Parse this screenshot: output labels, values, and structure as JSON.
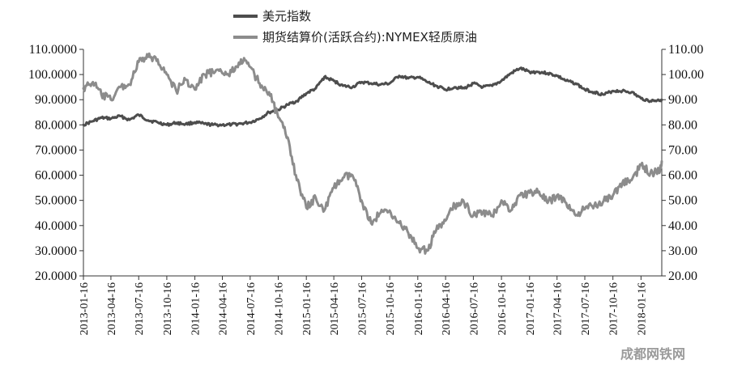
{
  "chart_data": {
    "type": "line",
    "title": "",
    "legend": {
      "placement": "top"
    },
    "grid": false,
    "left_axis": {
      "ylim": [
        20,
        110
      ],
      "ticks": [
        "20.0000",
        "30.0000",
        "40.0000",
        "50.0000",
        "60.0000",
        "70.0000",
        "80.0000",
        "90.0000",
        "100.0000",
        "110.0000"
      ]
    },
    "right_axis": {
      "ylim": [
        20,
        110
      ],
      "ticks": [
        "20.00",
        "30.00",
        "40.00",
        "50.00",
        "60.00",
        "70.00",
        "80.00",
        "90.00",
        "100.00",
        "110.00"
      ]
    },
    "x_ticks": [
      "2013-01-16",
      "2013-04-16",
      "2013-07-16",
      "2013-10-16",
      "2014-01-16",
      "2014-04-16",
      "2014-07-16",
      "2014-10-16",
      "2015-01-16",
      "2015-04-16",
      "2015-07-16",
      "2015-10-16",
      "2016-01-16",
      "2016-04-16",
      "2016-07-16",
      "2016-10-16",
      "2017-01-16",
      "2017-04-16",
      "2017-07-16",
      "2017-10-16",
      "2018-01-16"
    ],
    "xlim": [
      "2013-01-16",
      "2018-03-25"
    ],
    "series": [
      {
        "name": "美元指数",
        "color": "#4d4d4d",
        "axis": "left",
        "points": [
          [
            "2013-01-16",
            80.0
          ],
          [
            "2013-02-16",
            81.5
          ],
          [
            "2013-03-16",
            82.8
          ],
          [
            "2013-04-16",
            82.5
          ],
          [
            "2013-05-16",
            83.5
          ],
          [
            "2013-06-16",
            82.0
          ],
          [
            "2013-07-16",
            84.0
          ],
          [
            "2013-08-16",
            81.8
          ],
          [
            "2013-09-16",
            81.0
          ],
          [
            "2013-10-16",
            80.0
          ],
          [
            "2013-11-16",
            80.8
          ],
          [
            "2013-12-16",
            80.3
          ],
          [
            "2014-01-16",
            81.0
          ],
          [
            "2014-02-16",
            80.4
          ],
          [
            "2014-03-16",
            80.0
          ],
          [
            "2014-04-16",
            80.0
          ],
          [
            "2014-05-16",
            80.1
          ],
          [
            "2014-06-16",
            80.5
          ],
          [
            "2014-07-16",
            81.0
          ],
          [
            "2014-08-16",
            82.5
          ],
          [
            "2014-09-16",
            85.0
          ],
          [
            "2014-10-16",
            86.0
          ],
          [
            "2014-11-16",
            88.0
          ],
          [
            "2014-12-16",
            89.5
          ],
          [
            "2015-01-16",
            92.5
          ],
          [
            "2015-02-16",
            94.5
          ],
          [
            "2015-03-16",
            99.0
          ],
          [
            "2015-04-16",
            97.5
          ],
          [
            "2015-05-16",
            95.5
          ],
          [
            "2015-06-16",
            95.0
          ],
          [
            "2015-07-16",
            97.0
          ],
          [
            "2015-08-16",
            96.5
          ],
          [
            "2015-09-16",
            96.0
          ],
          [
            "2015-10-16",
            96.5
          ],
          [
            "2015-11-16",
            99.5
          ],
          [
            "2015-12-16",
            98.5
          ],
          [
            "2016-01-16",
            99.0
          ],
          [
            "2016-02-16",
            97.0
          ],
          [
            "2016-03-16",
            95.5
          ],
          [
            "2016-04-16",
            94.0
          ],
          [
            "2016-05-16",
            95.0
          ],
          [
            "2016-06-16",
            94.5
          ],
          [
            "2016-07-16",
            96.5
          ],
          [
            "2016-08-16",
            95.0
          ],
          [
            "2016-09-16",
            95.5
          ],
          [
            "2016-10-16",
            97.5
          ],
          [
            "2016-11-16",
            100.5
          ],
          [
            "2016-12-16",
            102.5
          ],
          [
            "2017-01-16",
            101.0
          ],
          [
            "2017-02-16",
            101.0
          ],
          [
            "2017-03-16",
            100.5
          ],
          [
            "2017-04-16",
            99.5
          ],
          [
            "2017-05-16",
            97.5
          ],
          [
            "2017-06-16",
            96.5
          ],
          [
            "2017-07-16",
            94.0
          ],
          [
            "2017-08-16",
            93.0
          ],
          [
            "2017-09-16",
            92.0
          ],
          [
            "2017-10-16",
            93.5
          ],
          [
            "2017-11-16",
            93.5
          ],
          [
            "2017-12-16",
            93.0
          ],
          [
            "2018-01-16",
            90.5
          ],
          [
            "2018-02-16",
            89.5
          ],
          [
            "2018-03-16",
            89.8
          ],
          [
            "2018-03-25",
            90.0
          ]
        ]
      },
      {
        "name": "期货结算价(活跃合约):NYMEX轻质原油",
        "color": "#8c8c8c",
        "axis": "right",
        "points": [
          [
            "2013-01-16",
            94.5
          ],
          [
            "2013-02-16",
            97.0
          ],
          [
            "2013-03-16",
            92.0
          ],
          [
            "2013-04-16",
            90.0
          ],
          [
            "2013-05-16",
            95.0
          ],
          [
            "2013-06-16",
            96.0
          ],
          [
            "2013-07-16",
            105.0
          ],
          [
            "2013-08-16",
            107.0
          ],
          [
            "2013-09-16",
            106.0
          ],
          [
            "2013-10-16",
            100.0
          ],
          [
            "2013-11-16",
            93.5
          ],
          [
            "2013-12-16",
            98.0
          ],
          [
            "2014-01-16",
            94.0
          ],
          [
            "2014-02-16",
            100.0
          ],
          [
            "2014-03-16",
            101.0
          ],
          [
            "2014-04-16",
            100.5
          ],
          [
            "2014-05-16",
            101.0
          ],
          [
            "2014-06-16",
            106.0
          ],
          [
            "2014-07-16",
            103.0
          ],
          [
            "2014-08-16",
            96.5
          ],
          [
            "2014-09-16",
            93.0
          ],
          [
            "2014-10-16",
            83.0
          ],
          [
            "2014-11-16",
            75.0
          ],
          [
            "2014-12-16",
            58.0
          ],
          [
            "2015-01-16",
            47.0
          ],
          [
            "2015-02-16",
            51.0
          ],
          [
            "2015-03-16",
            46.0
          ],
          [
            "2015-04-16",
            55.0
          ],
          [
            "2015-05-16",
            59.0
          ],
          [
            "2015-06-16",
            60.0
          ],
          [
            "2015-07-16",
            50.0
          ],
          [
            "2015-08-16",
            41.0
          ],
          [
            "2015-09-16",
            45.0
          ],
          [
            "2015-10-16",
            46.0
          ],
          [
            "2015-11-16",
            41.0
          ],
          [
            "2015-12-16",
            37.0
          ],
          [
            "2016-01-16",
            31.0
          ],
          [
            "2016-02-16",
            30.0
          ],
          [
            "2016-03-16",
            38.0
          ],
          [
            "2016-04-16",
            42.0
          ],
          [
            "2016-05-16",
            48.0
          ],
          [
            "2016-06-16",
            49.0
          ],
          [
            "2016-07-16",
            44.0
          ],
          [
            "2016-08-16",
            45.0
          ],
          [
            "2016-09-16",
            44.0
          ],
          [
            "2016-10-16",
            50.0
          ],
          [
            "2016-11-16",
            46.0
          ],
          [
            "2016-12-16",
            52.0
          ],
          [
            "2017-01-16",
            53.0
          ],
          [
            "2017-02-16",
            53.5
          ],
          [
            "2017-03-16",
            49.0
          ],
          [
            "2017-04-16",
            52.0
          ],
          [
            "2017-05-16",
            49.0
          ],
          [
            "2017-06-16",
            44.0
          ],
          [
            "2017-07-16",
            46.5
          ],
          [
            "2017-08-16",
            48.0
          ],
          [
            "2017-09-16",
            50.0
          ],
          [
            "2017-10-16",
            52.0
          ],
          [
            "2017-11-16",
            57.0
          ],
          [
            "2017-12-16",
            58.0
          ],
          [
            "2018-01-16",
            64.0
          ],
          [
            "2018-02-16",
            61.0
          ],
          [
            "2018-03-16",
            61.5
          ],
          [
            "2018-03-25",
            65.5
          ]
        ]
      }
    ]
  },
  "watermark": "成都网铁网"
}
